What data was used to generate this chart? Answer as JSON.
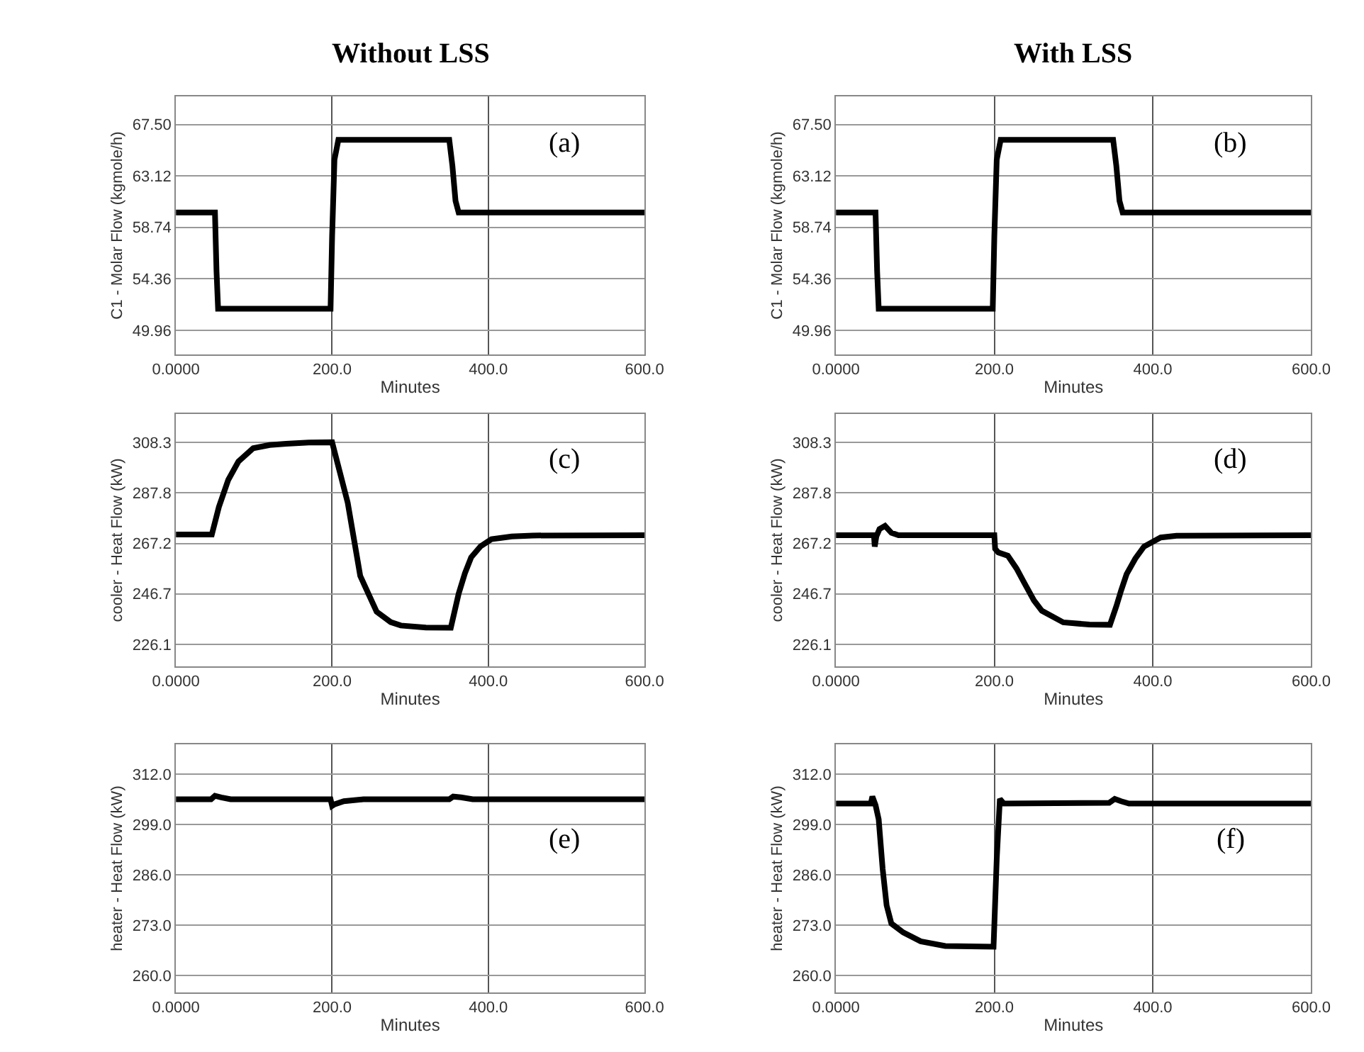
{
  "chart_data": [
    {
      "type": "line",
      "title": "Without LSS",
      "xlabel": "Minutes",
      "ylabel": "C1 - Molar Flow (kgmole/h)",
      "annotations": [
        "(a)"
      ],
      "xlim": [
        0,
        600
      ],
      "xticks": [
        {
          "value": 0,
          "label": "0.0000"
        },
        {
          "value": 200,
          "label": "200.0"
        },
        {
          "value": 400,
          "label": "400.0"
        },
        {
          "value": 600,
          "label": "600.0"
        }
      ],
      "ylim": [
        47.9,
        69.9
      ],
      "yticks": [
        {
          "value": 49.96,
          "label": "49.96"
        },
        {
          "value": 54.36,
          "label": "54.36"
        },
        {
          "value": 58.74,
          "label": "58.74"
        },
        {
          "value": 63.12,
          "label": "63.12"
        },
        {
          "value": 67.5,
          "label": "67.50"
        }
      ],
      "grid": true,
      "marker": "none",
      "line_style": "solid",
      "series": [
        {
          "color": "#000000",
          "x": [
            0,
            50,
            52,
            54,
            198,
            200,
            203,
            208,
            350,
            354,
            358,
            362,
            600
          ],
          "values": [
            60.0,
            60.0,
            55.0,
            51.8,
            51.8,
            58.0,
            64.5,
            66.2,
            66.2,
            64.0,
            61.0,
            60.0,
            60.0
          ]
        }
      ]
    },
    {
      "type": "line",
      "title": "With LSS",
      "xlabel": "Minutes",
      "ylabel": "C1 - Molar Flow (kgmole/h)",
      "annotations": [
        "(b)"
      ],
      "xlim": [
        0,
        600
      ],
      "xticks": [
        {
          "value": 0,
          "label": "0.0000"
        },
        {
          "value": 200,
          "label": "200.0"
        },
        {
          "value": 400,
          "label": "400.0"
        },
        {
          "value": 600,
          "label": "600.0"
        }
      ],
      "ylim": [
        47.9,
        69.9
      ],
      "yticks": [
        {
          "value": 49.96,
          "label": "49.96"
        },
        {
          "value": 54.36,
          "label": "54.36"
        },
        {
          "value": 58.74,
          "label": "58.74"
        },
        {
          "value": 63.12,
          "label": "63.12"
        },
        {
          "value": 67.5,
          "label": "67.50"
        }
      ],
      "grid": true,
      "marker": "none",
      "line_style": "solid",
      "series": [
        {
          "color": "#000000",
          "x": [
            0,
            50,
            52,
            54,
            198,
            200,
            203,
            208,
            350,
            354,
            358,
            362,
            600
          ],
          "values": [
            60.0,
            60.0,
            55.0,
            51.8,
            51.8,
            58.0,
            64.5,
            66.2,
            66.2,
            64.0,
            61.0,
            60.0,
            60.0
          ]
        }
      ]
    },
    {
      "type": "line",
      "xlabel": "Minutes",
      "ylabel": "cooler - Heat Flow (kW)",
      "annotations": [
        "(c)"
      ],
      "xlim": [
        0,
        600
      ],
      "xticks": [
        {
          "value": 0,
          "label": "0.0000"
        },
        {
          "value": 200,
          "label": "200.0"
        },
        {
          "value": 400,
          "label": "400.0"
        },
        {
          "value": 600,
          "label": "600.0"
        }
      ],
      "ylim": [
        217.2,
        319.8
      ],
      "yticks": [
        {
          "value": 226.1,
          "label": "226.1"
        },
        {
          "value": 246.7,
          "label": "246.7"
        },
        {
          "value": 267.2,
          "label": "267.2"
        },
        {
          "value": 287.8,
          "label": "287.8"
        },
        {
          "value": 308.3,
          "label": "308.3"
        }
      ],
      "grid": true,
      "marker": "none",
      "line_style": "solid",
      "series": [
        {
          "color": "#000000",
          "x": [
            0,
            46,
            55,
            67,
            80,
            99,
            120,
            141,
            170,
            200,
            210,
            220,
            236,
            257,
            275,
            288,
            320,
            352,
            362,
            370,
            378,
            390,
            404,
            430,
            457,
            600
          ],
          "values": [
            270.8,
            270.8,
            282.0,
            293.0,
            300.5,
            305.9,
            307.2,
            307.7,
            308.2,
            308.3,
            296.0,
            283.7,
            254.0,
            239.4,
            235.2,
            233.8,
            233.0,
            232.9,
            246.7,
            255.0,
            261.5,
            266.0,
            268.9,
            270.0,
            270.4,
            270.5
          ]
        }
      ]
    },
    {
      "type": "line",
      "xlabel": "Minutes",
      "ylabel": "cooler - Heat Flow (kW)",
      "annotations": [
        "(d)"
      ],
      "xlim": [
        0,
        600
      ],
      "xticks": [
        {
          "value": 0,
          "label": "0.0000"
        },
        {
          "value": 200,
          "label": "200.0"
        },
        {
          "value": 400,
          "label": "400.0"
        },
        {
          "value": 600,
          "label": "600.0"
        }
      ],
      "ylim": [
        217.2,
        319.8
      ],
      "yticks": [
        {
          "value": 226.1,
          "label": "226.1"
        },
        {
          "value": 246.7,
          "label": "246.7"
        },
        {
          "value": 267.2,
          "label": "267.2"
        },
        {
          "value": 287.8,
          "label": "287.8"
        },
        {
          "value": 308.3,
          "label": "308.3"
        }
      ],
      "grid": true,
      "marker": "none",
      "line_style": "solid",
      "series": [
        {
          "color": "#000000",
          "x": [
            0,
            48,
            49,
            51,
            55,
            62,
            70,
            79,
            200,
            201,
            205,
            217,
            228,
            238,
            250,
            260,
            287,
            320,
            346,
            354,
            360,
            367,
            378,
            389,
            410,
            430,
            600
          ],
          "values": [
            270.5,
            270.5,
            265.9,
            270.0,
            273.0,
            274.3,
            271.5,
            270.5,
            270.5,
            265.0,
            263.5,
            262.2,
            257.0,
            251.0,
            244.0,
            239.8,
            235.1,
            234.2,
            234.1,
            241.6,
            248.0,
            254.7,
            261.0,
            265.9,
            269.6,
            270.3,
            270.5
          ]
        }
      ]
    },
    {
      "type": "line",
      "xlabel": "Minutes",
      "ylabel": "heater - Heat Flow (kW)",
      "annotations": [
        "(e)"
      ],
      "xlim": [
        0,
        600
      ],
      "xticks": [
        {
          "value": 0,
          "label": "0.0000"
        },
        {
          "value": 200,
          "label": "200.0"
        },
        {
          "value": 400,
          "label": "400.0"
        },
        {
          "value": 600,
          "label": "600.0"
        }
      ],
      "ylim": [
        255.6,
        319.7
      ],
      "yticks": [
        {
          "value": 260,
          "label": "260.0"
        },
        {
          "value": 273,
          "label": "273.0"
        },
        {
          "value": 286,
          "label": "286.0"
        },
        {
          "value": 299,
          "label": "299.0"
        },
        {
          "value": 312,
          "label": "312.0"
        }
      ],
      "grid": true,
      "marker": "none",
      "line_style": "solid",
      "series": [
        {
          "color": "#000000",
          "x": [
            0,
            45,
            50,
            58,
            70,
            198,
            200,
            203,
            215,
            240,
            350,
            355,
            365,
            380,
            600
          ],
          "values": [
            305.5,
            305.5,
            306.4,
            306.0,
            305.5,
            305.5,
            303.8,
            304.2,
            305.0,
            305.5,
            305.5,
            306.2,
            306.0,
            305.5,
            305.5
          ]
        }
      ]
    },
    {
      "type": "line",
      "xlabel": "Minutes",
      "ylabel": "heater - Heat Flow (kW)",
      "annotations": [
        "(f)"
      ],
      "xlim": [
        0,
        600
      ],
      "xticks": [
        {
          "value": 0,
          "label": "0.0000"
        },
        {
          "value": 200,
          "label": "200.0"
        },
        {
          "value": 400,
          "label": "400.0"
        },
        {
          "value": 600,
          "label": "600.0"
        }
      ],
      "ylim": [
        255.6,
        319.7
      ],
      "yticks": [
        {
          "value": 260,
          "label": "260.0"
        },
        {
          "value": 273,
          "label": "273.0"
        },
        {
          "value": 286,
          "label": "286.0"
        },
        {
          "value": 299,
          "label": "299.0"
        },
        {
          "value": 312,
          "label": "312.0"
        }
      ],
      "grid": true,
      "marker": "none",
      "line_style": "solid",
      "series": [
        {
          "color": "#000000",
          "x": [
            0,
            44,
            46,
            50,
            54,
            59,
            64,
            70,
            85,
            107,
            138,
            199,
            203,
            207,
            212,
            345,
            352,
            360,
            370,
            600
          ],
          "values": [
            304.4,
            304.4,
            306.2,
            304.0,
            300.3,
            287.5,
            278.1,
            273.4,
            271.1,
            268.8,
            267.6,
            267.4,
            290.0,
            305.6,
            304.4,
            304.6,
            305.6,
            305.0,
            304.4,
            304.4
          ]
        }
      ]
    }
  ]
}
